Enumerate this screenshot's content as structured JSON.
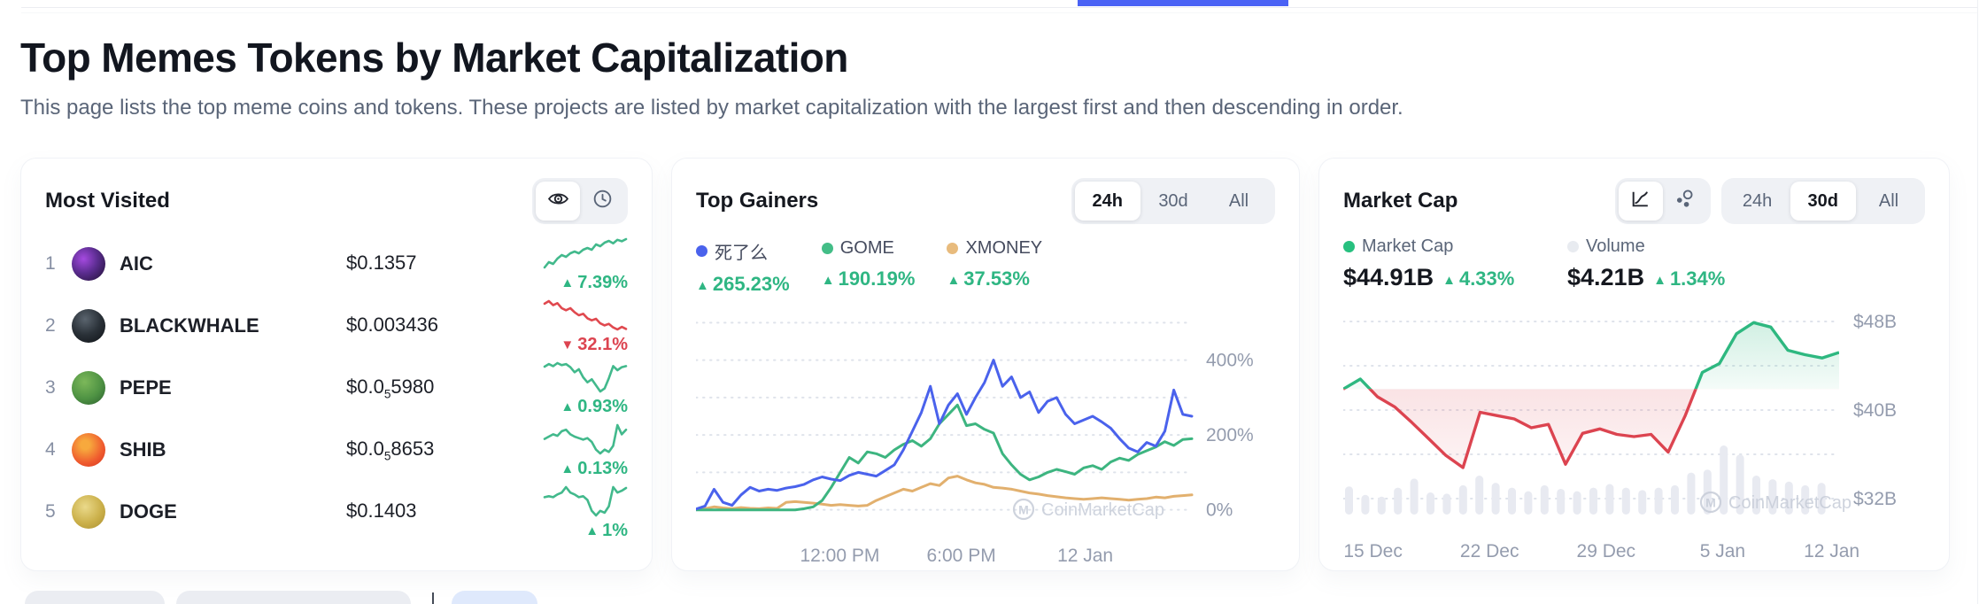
{
  "page": {
    "title": "Top Memes Tokens by Market Capitalization",
    "subtitle": "This page lists the top meme coins and tokens. These projects are listed by market capitalization with the largest first and then descending in order.",
    "accent_blue": "#4a62f5",
    "up_color": "#2fb683",
    "down_color": "#dc4450"
  },
  "watermark": {
    "label": "CoinMarketCap"
  },
  "most_visited": {
    "title": "Most Visited",
    "view_icons": [
      "eye",
      "clock"
    ],
    "tokens": [
      {
        "rank": "1",
        "symbol": "AIC",
        "price_prefix": "$0.1357",
        "price_sub": "",
        "price_rest": "",
        "arrow": "▲",
        "change": "7.39%",
        "direction": "up",
        "spark": [
          1,
          2.5,
          2,
          3.5,
          4.5,
          4,
          5,
          5.5,
          5,
          6,
          6.5,
          6,
          7.5,
          7,
          8,
          8.5,
          7.8,
          8.8,
          8.4,
          9
        ]
      },
      {
        "rank": "2",
        "symbol": "BLACKWHALE",
        "price_prefix": "$0.003436",
        "price_sub": "",
        "price_rest": "",
        "arrow": "▼",
        "change": "32.1%",
        "direction": "down",
        "spark": [
          8.5,
          9,
          8.2,
          8.6,
          7.6,
          7.2,
          7.6,
          6.8,
          6.2,
          6.5,
          5.6,
          5.2,
          5.5,
          4.6,
          4.2,
          4.5,
          3.8,
          3.4,
          3.9,
          3.5
        ]
      },
      {
        "rank": "3",
        "symbol": "PEPE",
        "price_prefix": "$0.0",
        "price_sub": "5",
        "price_rest": "5980",
        "arrow": "▲",
        "change": "0.93%",
        "direction": "up",
        "spark": [
          7.5,
          8,
          7.6,
          8.2,
          7.8,
          8,
          7.4,
          6.4,
          7,
          5.4,
          4.4,
          5,
          3.8,
          2.6,
          3.2,
          5.2,
          7.6,
          6.8,
          7.4,
          7.6
        ]
      },
      {
        "rank": "4",
        "symbol": "SHIB",
        "price_prefix": "$0.0",
        "price_sub": "5",
        "price_rest": "8653",
        "arrow": "▲",
        "change": "0.13%",
        "direction": "up",
        "spark": [
          5,
          5.3,
          5.6,
          5.4,
          6,
          6.2,
          5.6,
          5.3,
          5.1,
          4.9,
          5.1,
          4.6,
          3.6,
          3.1,
          3.6,
          3.3,
          4.1,
          6.8,
          5.6,
          6.2
        ]
      },
      {
        "rank": "5",
        "symbol": "DOGE",
        "price_prefix": "$0.1403",
        "price_sub": "",
        "price_rest": "",
        "arrow": "▲",
        "change": "1%",
        "direction": "up",
        "spark": [
          4.6,
          4.7,
          4.6,
          4.9,
          5.1,
          5.7,
          5.1,
          4.9,
          4.6,
          4.7,
          4.3,
          3.1,
          2.6,
          3.1,
          2.9,
          3.6,
          5.7,
          5.1,
          5.3,
          5.6
        ]
      }
    ]
  },
  "top_gainers": {
    "title": "Top Gainers",
    "tabs": [
      {
        "label": "24h",
        "active": true
      },
      {
        "label": "30d",
        "active": false
      },
      {
        "label": "All",
        "active": false
      }
    ],
    "legend": [
      {
        "name": "死了么",
        "color": "#4a62ec",
        "arrow": "▲",
        "change": "265.23%"
      },
      {
        "name": "GOME",
        "color": "#43bd87",
        "arrow": "▲",
        "change": "190.19%"
      },
      {
        "name": "XMONEY",
        "color": "#e8bb7d",
        "arrow": "▲",
        "change": "37.53%"
      }
    ]
  },
  "market_cap": {
    "title": "Market Cap",
    "chart_type_icons": [
      "line-chart",
      "bubble-chart"
    ],
    "tabs": [
      {
        "label": "24h",
        "active": false
      },
      {
        "label": "30d",
        "active": true
      },
      {
        "label": "All",
        "active": false
      }
    ],
    "legend": [
      {
        "name": "Market Cap",
        "color": "#27c07f",
        "value": "$44.91B",
        "arrow": "▲",
        "change": "4.33%"
      },
      {
        "name": "Volume",
        "color": "#e8ebf0",
        "value": "$4.21B",
        "arrow": "▲",
        "change": "1.34%"
      }
    ]
  },
  "chart_data": [
    {
      "type": "line",
      "title": "Top Gainers 24h performance (%)",
      "legend_position": "top",
      "grid": "dotted-horizontal",
      "ylim": [
        -15,
        515
      ],
      "gridlines": [
        0,
        100,
        200,
        300,
        400,
        500
      ],
      "yticks": [
        {
          "label": "400%",
          "v": 400
        },
        {
          "label": "200%",
          "v": 200
        },
        {
          "label": "0%",
          "v": 0
        }
      ],
      "xticks": [
        {
          "label": "12:00 PM",
          "pos": 0.29
        },
        {
          "label": "6:00 PM",
          "pos": 0.535
        },
        {
          "label": "12 Jan",
          "pos": 0.785
        }
      ],
      "series": [
        {
          "name": "XMONEY",
          "color": "#e2b06e",
          "values": [
            1,
            3,
            8,
            5,
            3,
            6,
            4,
            3,
            5,
            4,
            20,
            22,
            20,
            18,
            15,
            12,
            14,
            12,
            10,
            12,
            25,
            35,
            45,
            55,
            50,
            60,
            70,
            65,
            85,
            90,
            80,
            72,
            68,
            60,
            58,
            55,
            50,
            45,
            42,
            38,
            35,
            32,
            30,
            28,
            30,
            32,
            30,
            28,
            26,
            28,
            30,
            34,
            32,
            36,
            38,
            40
          ]
        },
        {
          "name": "GOME",
          "color": "#3db580",
          "values": [
            0,
            0,
            0,
            0,
            0,
            0,
            0,
            0,
            0,
            0,
            0,
            0,
            3,
            8,
            25,
            60,
            100,
            140,
            125,
            155,
            150,
            140,
            160,
            175,
            185,
            170,
            190,
            230,
            255,
            280,
            225,
            230,
            215,
            205,
            150,
            120,
            95,
            80,
            88,
            100,
            108,
            102,
            95,
            112,
            118,
            108,
            128,
            138,
            132,
            148,
            158,
            168,
            182,
            172,
            188,
            190
          ]
        },
        {
          "name": "死了么",
          "color": "#4a62ec",
          "values": [
            2,
            10,
            55,
            20,
            12,
            40,
            60,
            50,
            55,
            52,
            58,
            62,
            68,
            80,
            88,
            82,
            78,
            92,
            100,
            95,
            90,
            105,
            120,
            160,
            210,
            260,
            330,
            230,
            280,
            310,
            255,
            300,
            340,
            400,
            330,
            355,
            300,
            315,
            260,
            290,
            300,
            255,
            230,
            240,
            250,
            235,
            218,
            190,
            165,
            155,
            180,
            170,
            210,
            320,
            255,
            250
          ]
        }
      ]
    },
    {
      "type": "line+bars",
      "title": "Memes Market Cap 30d ($B)",
      "grid": "dotted-horizontal",
      "baseline": 41.9,
      "ylim": [
        31,
        50
      ],
      "gridlines": [
        48,
        44,
        40,
        36,
        32
      ],
      "yticks": [
        {
          "label": "$48B",
          "v": 48
        },
        {
          "label": "$40B",
          "v": 40
        },
        {
          "label": "$32B",
          "v": 32
        }
      ],
      "xticks": [
        {
          "label": "15 Dec",
          "pos": 0.06
        },
        {
          "label": "22 Dec",
          "pos": 0.295
        },
        {
          "label": "29 Dec",
          "pos": 0.53
        },
        {
          "label": "5 Jan",
          "pos": 0.765
        },
        {
          "label": "12 Jan",
          "pos": 0.985
        }
      ],
      "line_name": "Market Cap",
      "line_values": [
        41.9,
        42.8,
        41.2,
        40.3,
        38.9,
        37.4,
        35.9,
        34.8,
        39.8,
        39.5,
        39.2,
        38.4,
        38.7,
        35.1,
        37.9,
        38.3,
        37.8,
        37.6,
        37.8,
        36.2,
        39.5,
        43.4,
        44.2,
        46.9,
        47.9,
        47.5,
        45.4,
        45.0,
        44.7,
        45.2
      ],
      "up_color": "#2eb880",
      "down_color": "#dc4450",
      "bars_name": "Volume",
      "bars_color": "#e8eaf1",
      "volume_bars": [
        0.32,
        0.18,
        0.15,
        0.3,
        0.45,
        0.22,
        0.2,
        0.34,
        0.5,
        0.38,
        0.3,
        0.24,
        0.34,
        0.28,
        0.24,
        0.3,
        0.36,
        0.3,
        0.26,
        0.3,
        0.34,
        0.55,
        0.6,
        1.0,
        0.85,
        0.5,
        0.44,
        0.4,
        0.34,
        0.38
      ]
    }
  ]
}
